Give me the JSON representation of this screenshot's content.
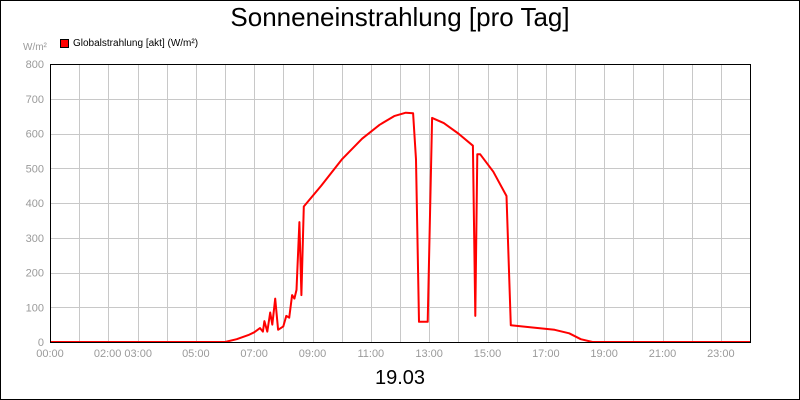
{
  "chart_data": {
    "type": "line",
    "title": "Sonneneinstrahlung [pro Tag]",
    "unit_label": "W/m²",
    "date_label": "19.03",
    "ylim": [
      0,
      800
    ],
    "xlim": [
      0,
      24
    ],
    "y_ticks": [
      0,
      100,
      200,
      300,
      400,
      500,
      600,
      700,
      800
    ],
    "x_tick_labels": [
      {
        "x": 0,
        "label": "00:00"
      },
      {
        "x": 2.5,
        "label": "02:00 03:00"
      },
      {
        "x": 5,
        "label": "05:00"
      },
      {
        "x": 7,
        "label": "07:00"
      },
      {
        "x": 9,
        "label": "09:00"
      },
      {
        "x": 11,
        "label": "11:00"
      },
      {
        "x": 13,
        "label": "13:00"
      },
      {
        "x": 15,
        "label": "15:00"
      },
      {
        "x": 17,
        "label": "17:00"
      },
      {
        "x": 19,
        "label": "19:00"
      },
      {
        "x": 21,
        "label": "21:00"
      },
      {
        "x": 23,
        "label": "23:00"
      }
    ],
    "grid": true,
    "legend_position": "top-left",
    "series": [
      {
        "name": "Globalstrahlung [akt] (W/m²)",
        "color": "#ff0000",
        "points": [
          [
            0,
            0
          ],
          [
            6.0,
            0
          ],
          [
            6.4,
            8
          ],
          [
            6.8,
            20
          ],
          [
            7.0,
            28
          ],
          [
            7.2,
            40
          ],
          [
            7.3,
            30
          ],
          [
            7.35,
            60
          ],
          [
            7.45,
            30
          ],
          [
            7.55,
            85
          ],
          [
            7.62,
            50
          ],
          [
            7.72,
            125
          ],
          [
            7.82,
            35
          ],
          [
            8.0,
            45
          ],
          [
            8.1,
            75
          ],
          [
            8.2,
            70
          ],
          [
            8.3,
            135
          ],
          [
            8.38,
            125
          ],
          [
            8.45,
            150
          ],
          [
            8.55,
            345
          ],
          [
            8.62,
            135
          ],
          [
            8.7,
            390
          ],
          [
            9.3,
            450
          ],
          [
            10.0,
            525
          ],
          [
            10.7,
            585
          ],
          [
            11.3,
            625
          ],
          [
            11.8,
            650
          ],
          [
            12.2,
            660
          ],
          [
            12.45,
            658
          ],
          [
            12.55,
            525
          ],
          [
            12.65,
            58
          ],
          [
            12.95,
            58
          ],
          [
            13.1,
            645
          ],
          [
            13.5,
            630
          ],
          [
            14.0,
            600
          ],
          [
            14.5,
            565
          ],
          [
            14.58,
            75
          ],
          [
            14.65,
            540
          ],
          [
            14.75,
            540
          ],
          [
            15.2,
            490
          ],
          [
            15.65,
            420
          ],
          [
            15.8,
            48
          ],
          [
            16.5,
            42
          ],
          [
            17.3,
            35
          ],
          [
            17.8,
            25
          ],
          [
            18.2,
            8
          ],
          [
            18.6,
            0
          ],
          [
            24,
            0
          ]
        ]
      }
    ]
  }
}
